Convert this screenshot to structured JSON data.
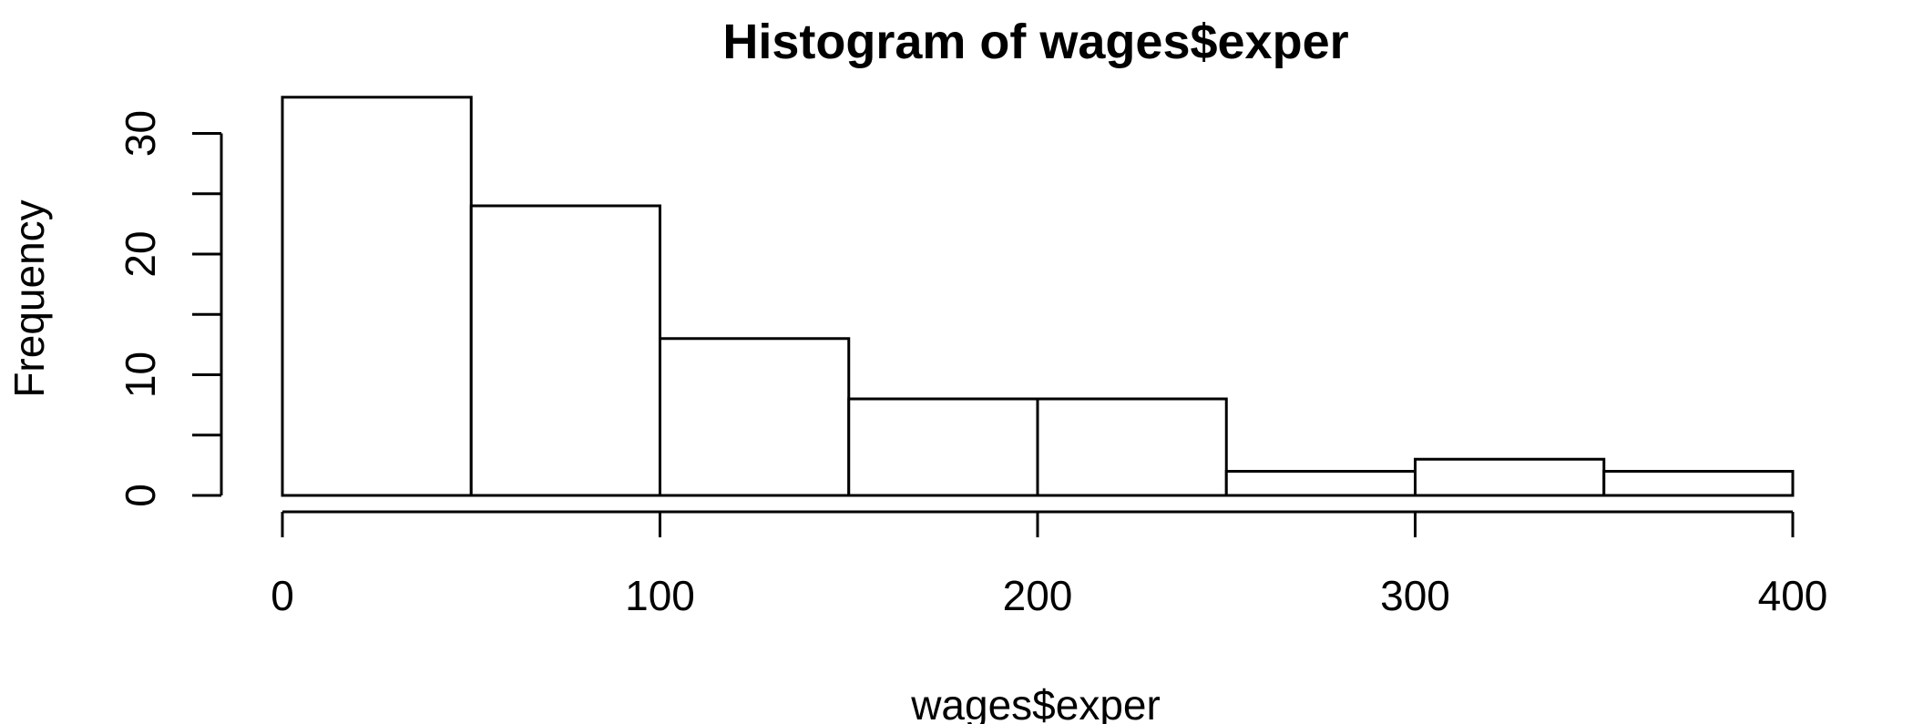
{
  "chart_data": {
    "type": "bar",
    "title": "Histogram of wages$exper",
    "xlabel": "wages$exper",
    "ylabel": "Frequency",
    "bins": [
      {
        "start": 0,
        "end": 50,
        "count": 33
      },
      {
        "start": 50,
        "end": 100,
        "count": 24
      },
      {
        "start": 100,
        "end": 150,
        "count": 13
      },
      {
        "start": 150,
        "end": 200,
        "count": 8
      },
      {
        "start": 200,
        "end": 250,
        "count": 8
      },
      {
        "start": 250,
        "end": 300,
        "count": 2
      },
      {
        "start": 300,
        "end": 350,
        "count": 3
      },
      {
        "start": 350,
        "end": 400,
        "count": 2
      }
    ],
    "xlim": [
      0,
      400
    ],
    "ylim": [
      0,
      33
    ],
    "x_ticks": [
      0,
      100,
      200,
      300,
      400
    ],
    "y_ticks_major": [
      0,
      10,
      20,
      30
    ],
    "y_ticks_minor": [
      5,
      15,
      25
    ],
    "grid": false,
    "legend": "none"
  }
}
